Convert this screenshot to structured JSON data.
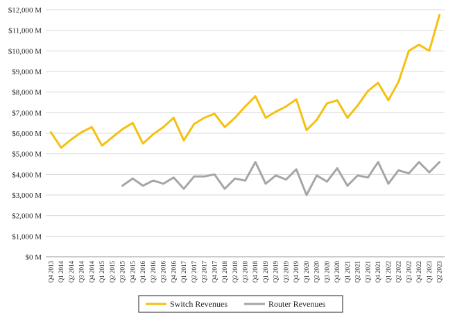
{
  "chart_data": {
    "type": "line",
    "title": "",
    "xlabel": "",
    "ylabel": "",
    "ylim": [
      0,
      12000
    ],
    "y_tick_labels": [
      "$0 M",
      "$1,000 M",
      "$2,000 M",
      "$3,000 M",
      "$4,000 M",
      "$5,000 M",
      "$6,000 M",
      "$7,000 M",
      "$8,000 M",
      "$9,000 M",
      "$10,000 M",
      "$11,000 M",
      "$12,000 M"
    ],
    "y_tick_values": [
      0,
      1000,
      2000,
      3000,
      4000,
      5000,
      6000,
      7000,
      8000,
      9000,
      10000,
      11000,
      12000
    ],
    "grid": "horizontal",
    "legend_position": "bottom",
    "categories": [
      "Q4 2013",
      "Q1 2014",
      "Q2 2014",
      "Q3 2014",
      "Q4 2014",
      "Q1 2015",
      "Q2 2015",
      "Q3 2015",
      "Q4 2015",
      "Q1 2016",
      "Q2 2016",
      "Q3 2016",
      "Q4 2016",
      "Q1 2017",
      "Q2 2017",
      "Q3 2017",
      "Q4 2017",
      "Q1 2018",
      "Q2 2018",
      "Q3 2018",
      "Q4 2018",
      "Q1 2019",
      "Q2 2019",
      "Q3 2019",
      "Q4 2019",
      "Q1 2020",
      "Q2 2020",
      "Q3 2020",
      "Q4 2020",
      "Q1 2021",
      "Q2 2021",
      "Q3 2021",
      "Q4 2021",
      "Q1 2022",
      "Q2 2022",
      "Q3 2022",
      "Q4 2022",
      "Q1 2023",
      "Q2 2023"
    ],
    "series": [
      {
        "name": "Switch Revenues",
        "color": "#f5c010",
        "values": [
          6050,
          5300,
          5700,
          6050,
          6300,
          5400,
          5800,
          6200,
          6500,
          5500,
          5950,
          6300,
          6750,
          5650,
          6450,
          6750,
          6950,
          6300,
          6750,
          7300,
          7800,
          6750,
          7050,
          7300,
          7650,
          6150,
          6650,
          7450,
          7600,
          6750,
          7350,
          8050,
          8450,
          7600,
          8500,
          10000,
          10300,
          10000,
          11750
        ]
      },
      {
        "name": "Router Revenues",
        "color": "#a6a6a6",
        "values": [
          null,
          null,
          null,
          null,
          null,
          null,
          null,
          3450,
          3800,
          3450,
          3700,
          3550,
          3850,
          3300,
          3900,
          3900,
          4000,
          3300,
          3800,
          3700,
          4600,
          3550,
          3950,
          3750,
          4250,
          3000,
          3950,
          3650,
          4300,
          3450,
          3950,
          3850,
          4600,
          3550,
          4200,
          4050,
          4600,
          4100,
          4600
        ]
      }
    ]
  }
}
